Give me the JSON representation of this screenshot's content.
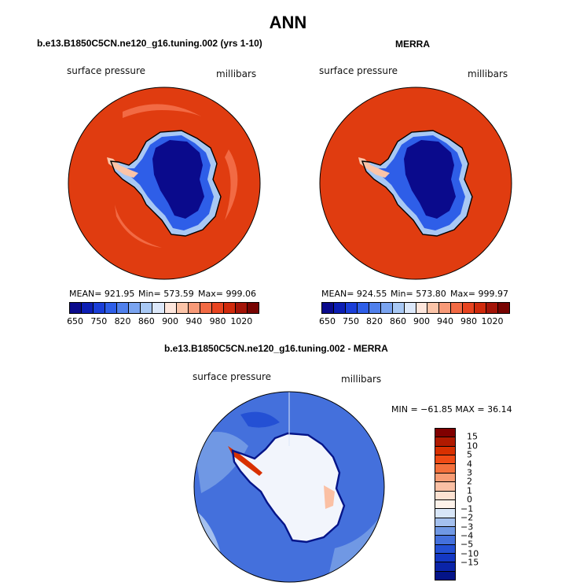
{
  "title": "ANN",
  "panels": {
    "model": {
      "title": "b.e13.B1850C5CN.ne120_g16.tuning.002 (yrs 1-10)",
      "field": "surface pressure",
      "units": "millibars",
      "mean": "MEAN= 921.95",
      "min": "Min= 573.59",
      "max": "Max= 999.06"
    },
    "obs": {
      "title": "MERRA",
      "field": "surface pressure",
      "units": "millibars",
      "mean": "MEAN= 924.55",
      "min": "Min= 573.80",
      "max": "Max= 999.97"
    },
    "diff": {
      "title": "b.e13.B1850C5CN.ne120_g16.tuning.002 - MERRA",
      "field": "surface pressure",
      "units": "millibars",
      "stats": "MIN = −61.85  MAX =  36.14"
    }
  },
  "colorbar_main": {
    "tick_labels": [
      "650",
      "750",
      "820",
      "860",
      "900",
      "940",
      "980",
      "1020"
    ],
    "colors": [
      "#0a0a8c",
      "#0c1eb4",
      "#1a3ed8",
      "#2e5ee8",
      "#5080ec",
      "#7aa4f0",
      "#a8c8f4",
      "#dce8fa",
      "#fde6dc",
      "#fbc4a8",
      "#f89a78",
      "#f26a44",
      "#e84420",
      "#d02a0c",
      "#a41408",
      "#780402"
    ]
  },
  "colorbar_diff": {
    "tick_labels": [
      "15",
      "10",
      "5",
      "4",
      "3",
      "2",
      "1",
      "0",
      "−1",
      "−2",
      "−3",
      "−4",
      "−5",
      "−10",
      "−15"
    ],
    "colors": [
      "#800000",
      "#b01a00",
      "#d83000",
      "#f04a14",
      "#f4703c",
      "#f89c74",
      "#fbc0a4",
      "#fde2d2",
      "#fdf2ea",
      "#d8e6f8",
      "#a4c0ee",
      "#7098e4",
      "#4470dc",
      "#2450d4",
      "#1438c4",
      "#0a24a8",
      "#041488"
    ]
  },
  "map_colors": {
    "ocean_red": "#e03c10",
    "ice_deep": "#0a0a8c",
    "diff_ocean": "#4470dc",
    "diff_ice": "#f2f5fc"
  }
}
